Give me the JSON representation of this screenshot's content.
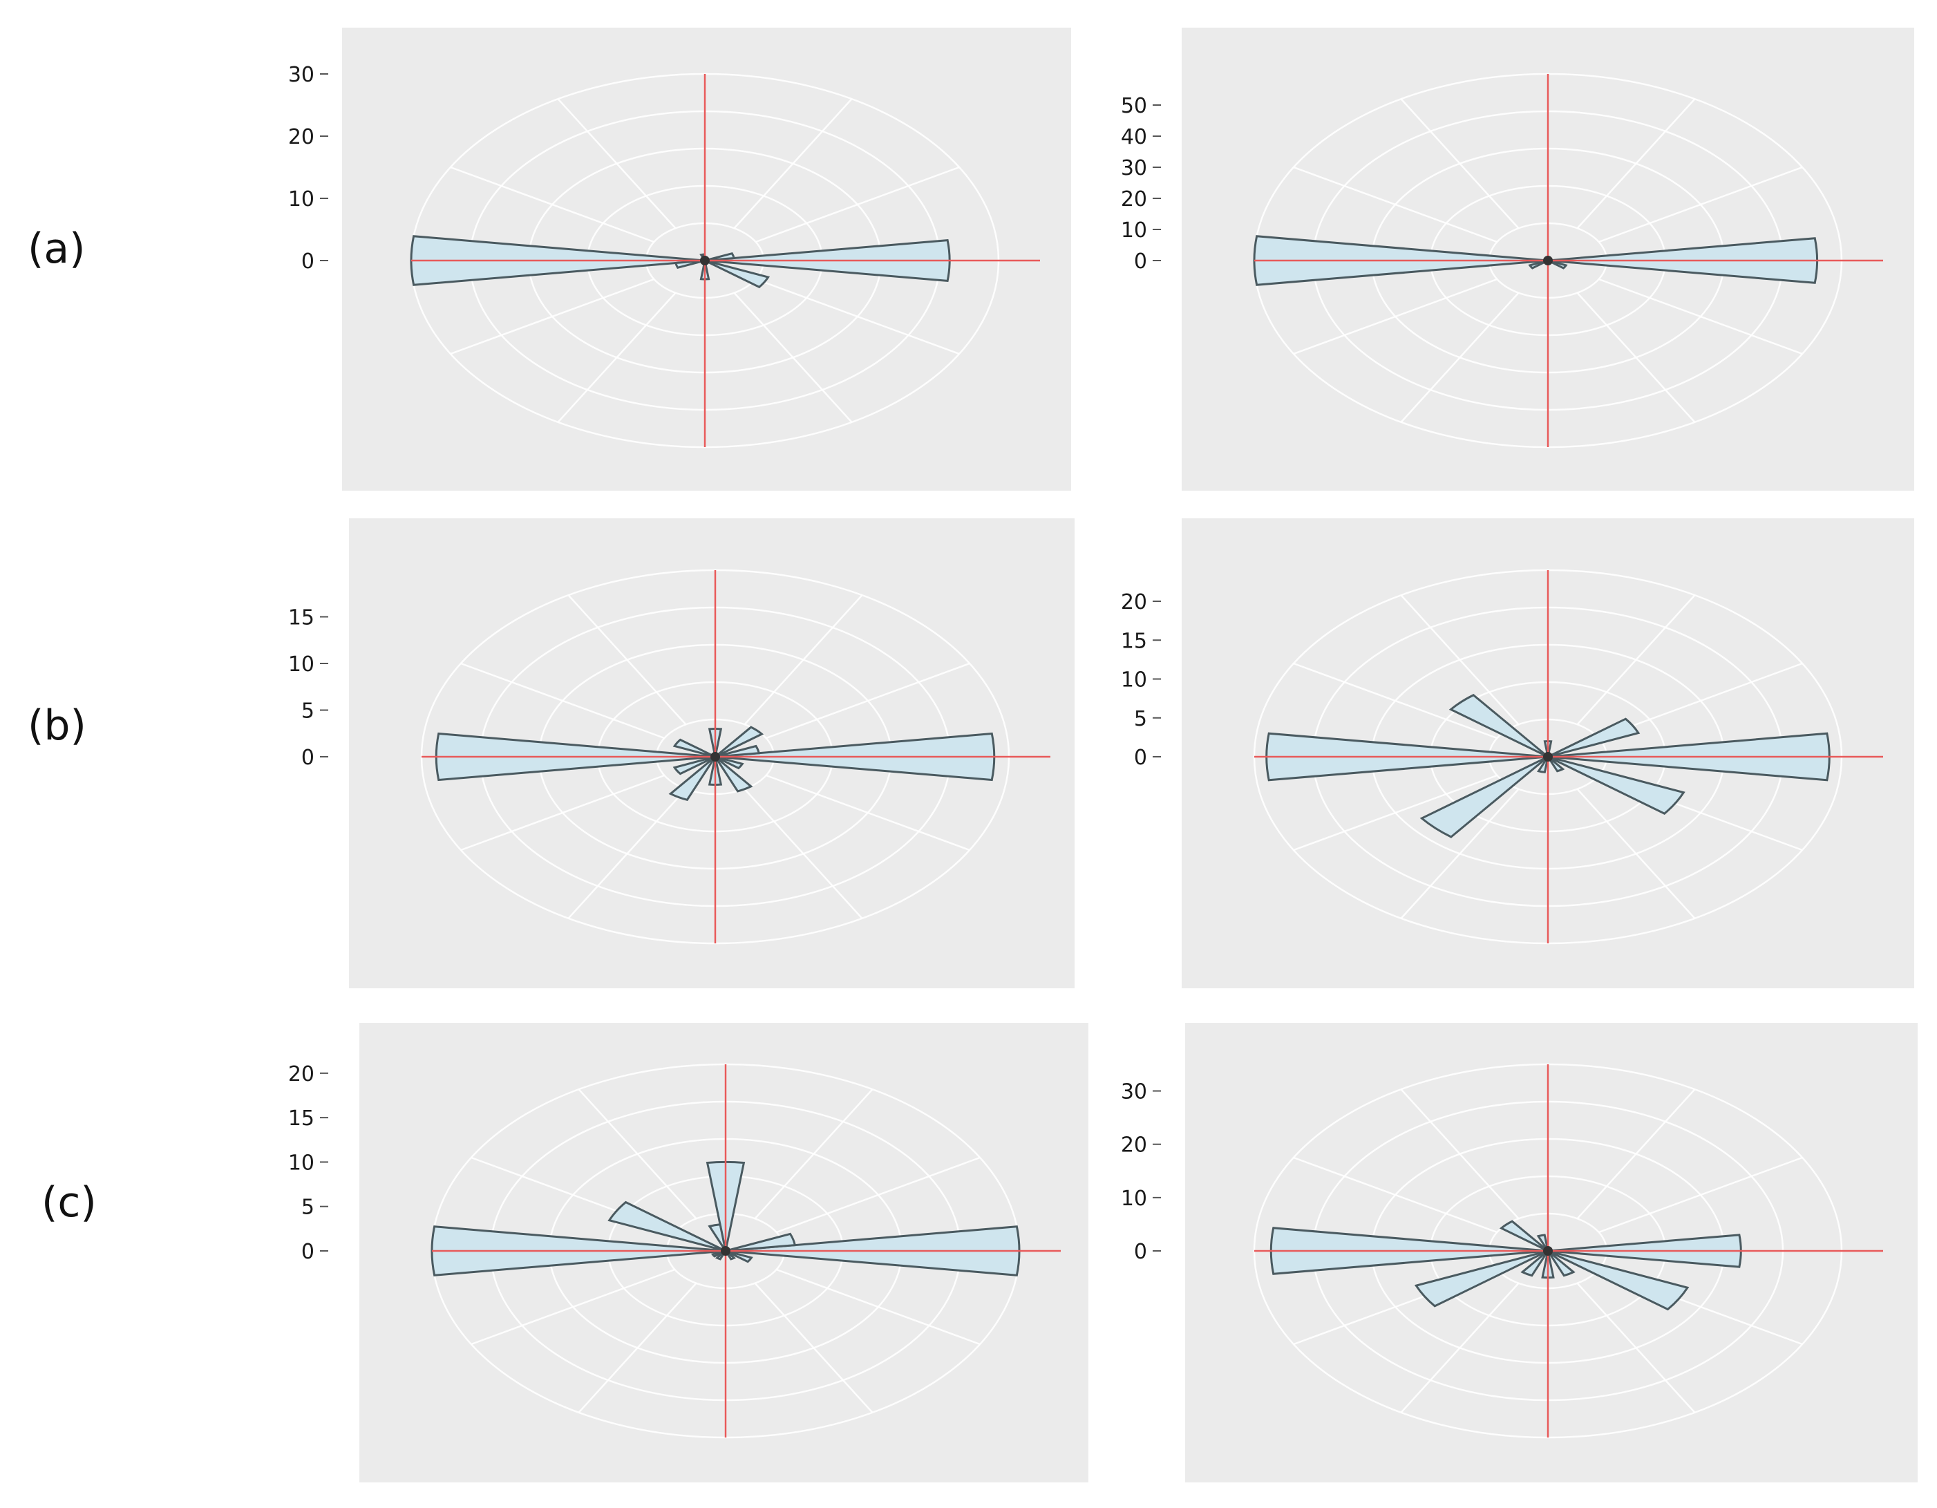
{
  "figure": {
    "row_labels": [
      "(a)",
      "(b)",
      "(c)"
    ]
  },
  "colors": {
    "panel_bg": "#ebebeb",
    "grid": "#ffffff",
    "petal_fill": "#cfe5ee",
    "petal_stroke": "#4a5a60",
    "crosshair": "#e85a5a"
  },
  "chart_data": [
    {
      "type": "rose",
      "row": "(a)",
      "column": "left",
      "bin_width_deg": 15,
      "rmax": 30,
      "yticks": [
        0,
        10,
        20,
        30
      ],
      "ytick_labels": [
        "0",
        "10",
        "20",
        "30"
      ],
      "bins": [
        {
          "angle": 0,
          "value": 25
        },
        {
          "angle": 15,
          "value": 3
        },
        {
          "angle": 105,
          "value": 1
        },
        {
          "angle": 180,
          "value": 30
        },
        {
          "angle": 195,
          "value": 3
        },
        {
          "angle": 270,
          "value": 3
        },
        {
          "angle": 330,
          "value": 7
        }
      ]
    },
    {
      "type": "rose",
      "row": "(a)",
      "column": "right",
      "bin_width_deg": 15,
      "rmax": 60,
      "yticks": [
        0,
        10,
        20,
        30,
        40,
        50
      ],
      "ytick_labels": [
        "0",
        "10",
        "20",
        "30",
        "40",
        "50"
      ],
      "bins": [
        {
          "angle": 0,
          "value": 55
        },
        {
          "angle": 180,
          "value": 60
        },
        {
          "angle": 210,
          "value": 4
        },
        {
          "angle": 330,
          "value": 4
        }
      ]
    },
    {
      "type": "rose",
      "row": "(b)",
      "column": "left",
      "bin_width_deg": 15,
      "rmax": 20,
      "yticks": [
        0,
        5,
        10,
        15
      ],
      "ytick_labels": [
        "0",
        "5",
        "10",
        "15"
      ],
      "bins": [
        {
          "angle": 0,
          "value": 19
        },
        {
          "angle": 15,
          "value": 3
        },
        {
          "angle": 45,
          "value": 4
        },
        {
          "angle": 90,
          "value": 3
        },
        {
          "angle": 150,
          "value": 3
        },
        {
          "angle": 180,
          "value": 19
        },
        {
          "angle": 210,
          "value": 3
        },
        {
          "angle": 240,
          "value": 5
        },
        {
          "angle": 270,
          "value": 3
        },
        {
          "angle": 300,
          "value": 4
        },
        {
          "angle": 330,
          "value": 2
        }
      ]
    },
    {
      "type": "rose",
      "row": "(b)",
      "column": "right",
      "bin_width_deg": 15,
      "rmax": 24,
      "yticks": [
        0,
        5,
        10,
        15,
        20
      ],
      "ytick_labels": [
        "0",
        "5",
        "10",
        "15",
        "20"
      ],
      "bins": [
        {
          "angle": 0,
          "value": 23
        },
        {
          "angle": 30,
          "value": 8
        },
        {
          "angle": 90,
          "value": 2
        },
        {
          "angle": 135,
          "value": 10
        },
        {
          "angle": 180,
          "value": 23
        },
        {
          "angle": 225,
          "value": 13
        },
        {
          "angle": 255,
          "value": 2
        },
        {
          "angle": 300,
          "value": 2
        },
        {
          "angle": 330,
          "value": 12
        }
      ]
    },
    {
      "type": "rose",
      "row": "(c)",
      "column": "left",
      "bin_width_deg": 15,
      "rmax": 21,
      "yticks": [
        0,
        5,
        10,
        15,
        20
      ],
      "ytick_labels": [
        "0",
        "5",
        "10",
        "15",
        "20"
      ],
      "bins": [
        {
          "angle": 0,
          "value": 21
        },
        {
          "angle": 15,
          "value": 5
        },
        {
          "angle": 90,
          "value": 10
        },
        {
          "angle": 105,
          "value": 3
        },
        {
          "angle": 150,
          "value": 9
        },
        {
          "angle": 180,
          "value": 21
        },
        {
          "angle": 210,
          "value": 1
        },
        {
          "angle": 240,
          "value": 1
        },
        {
          "angle": 300,
          "value": 1
        },
        {
          "angle": 330,
          "value": 2
        }
      ]
    },
    {
      "type": "rose",
      "row": "(c)",
      "column": "right",
      "bin_width_deg": 15,
      "rmax": 35,
      "yticks": [
        0,
        10,
        20,
        30
      ],
      "ytick_labels": [
        "0",
        "10",
        "20",
        "30"
      ],
      "bins": [
        {
          "angle": 0,
          "value": 23
        },
        {
          "angle": 105,
          "value": 3
        },
        {
          "angle": 135,
          "value": 7
        },
        {
          "angle": 180,
          "value": 33
        },
        {
          "angle": 210,
          "value": 17
        },
        {
          "angle": 240,
          "value": 5
        },
        {
          "angle": 270,
          "value": 5
        },
        {
          "angle": 300,
          "value": 5
        },
        {
          "angle": 330,
          "value": 18
        }
      ]
    }
  ]
}
